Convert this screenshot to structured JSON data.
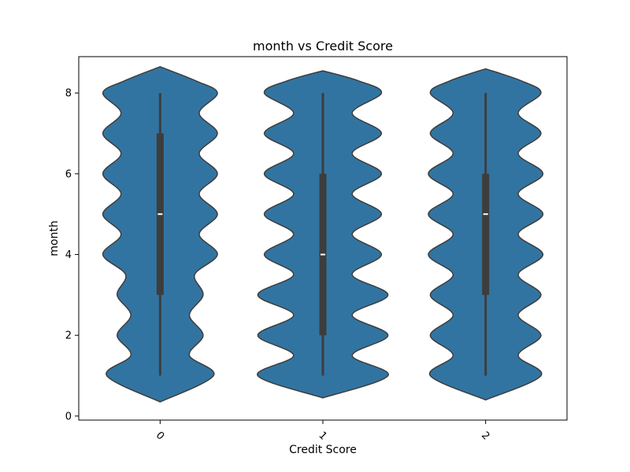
{
  "chart_data": {
    "type": "violin",
    "title": "month vs Credit Score",
    "xlabel": "Credit Score",
    "ylabel": "month",
    "categories": [
      "0",
      "1",
      "2"
    ],
    "ylim": [
      -0.1,
      8.9
    ],
    "yticks": [
      "0",
      "2",
      "4",
      "6",
      "8"
    ],
    "xtick_rotation": 45,
    "grid": false,
    "colors": {
      "violin_fill": "#3274a1",
      "violin_edge": "#3d3d3d",
      "box": "#3d3d3d",
      "median": "#ffffff"
    },
    "series": [
      {
        "category": "0",
        "min": 1,
        "q1": 3,
        "median": 5,
        "q3": 7,
        "max": 8,
        "density": [
          [
            0.35,
            0
          ],
          [
            1,
            0.82
          ],
          [
            1.5,
            0.45
          ],
          [
            2,
            0.66
          ],
          [
            2.5,
            0.45
          ],
          [
            3,
            0.66
          ],
          [
            3.5,
            0.53
          ],
          [
            4,
            0.88
          ],
          [
            4.5,
            0.6
          ],
          [
            5,
            0.88
          ],
          [
            5.5,
            0.6
          ],
          [
            6,
            0.88
          ],
          [
            6.5,
            0.6
          ],
          [
            7,
            0.88
          ],
          [
            7.5,
            0.6
          ],
          [
            8,
            0.88
          ],
          [
            8.3,
            0.55
          ],
          [
            8.65,
            0
          ]
        ]
      },
      {
        "category": "1",
        "min": 1,
        "q1": 2,
        "median": 4,
        "q3": 6,
        "max": 8,
        "density": [
          [
            0.45,
            0
          ],
          [
            1,
            1.0
          ],
          [
            1.5,
            0.45
          ],
          [
            2,
            1.0
          ],
          [
            2.5,
            0.45
          ],
          [
            3,
            1.0
          ],
          [
            3.5,
            0.45
          ],
          [
            4,
            0.9
          ],
          [
            4.5,
            0.45
          ],
          [
            5,
            0.9
          ],
          [
            5.5,
            0.45
          ],
          [
            6,
            0.9
          ],
          [
            6.5,
            0.45
          ],
          [
            7,
            0.9
          ],
          [
            7.5,
            0.45
          ],
          [
            8,
            0.9
          ],
          [
            8.3,
            0.55
          ],
          [
            8.55,
            0
          ]
        ]
      },
      {
        "category": "2",
        "min": 1,
        "q1": 3,
        "median": 5,
        "q3": 6,
        "max": 8,
        "density": [
          [
            0.4,
            0
          ],
          [
            1,
            0.85
          ],
          [
            1.5,
            0.5
          ],
          [
            2,
            0.85
          ],
          [
            2.5,
            0.5
          ],
          [
            3,
            0.85
          ],
          [
            3.5,
            0.5
          ],
          [
            4,
            0.88
          ],
          [
            4.5,
            0.5
          ],
          [
            5,
            0.88
          ],
          [
            5.5,
            0.5
          ],
          [
            6,
            0.88
          ],
          [
            6.5,
            0.5
          ],
          [
            7,
            0.85
          ],
          [
            7.5,
            0.5
          ],
          [
            8,
            0.85
          ],
          [
            8.3,
            0.55
          ],
          [
            8.6,
            0
          ]
        ]
      }
    ]
  }
}
